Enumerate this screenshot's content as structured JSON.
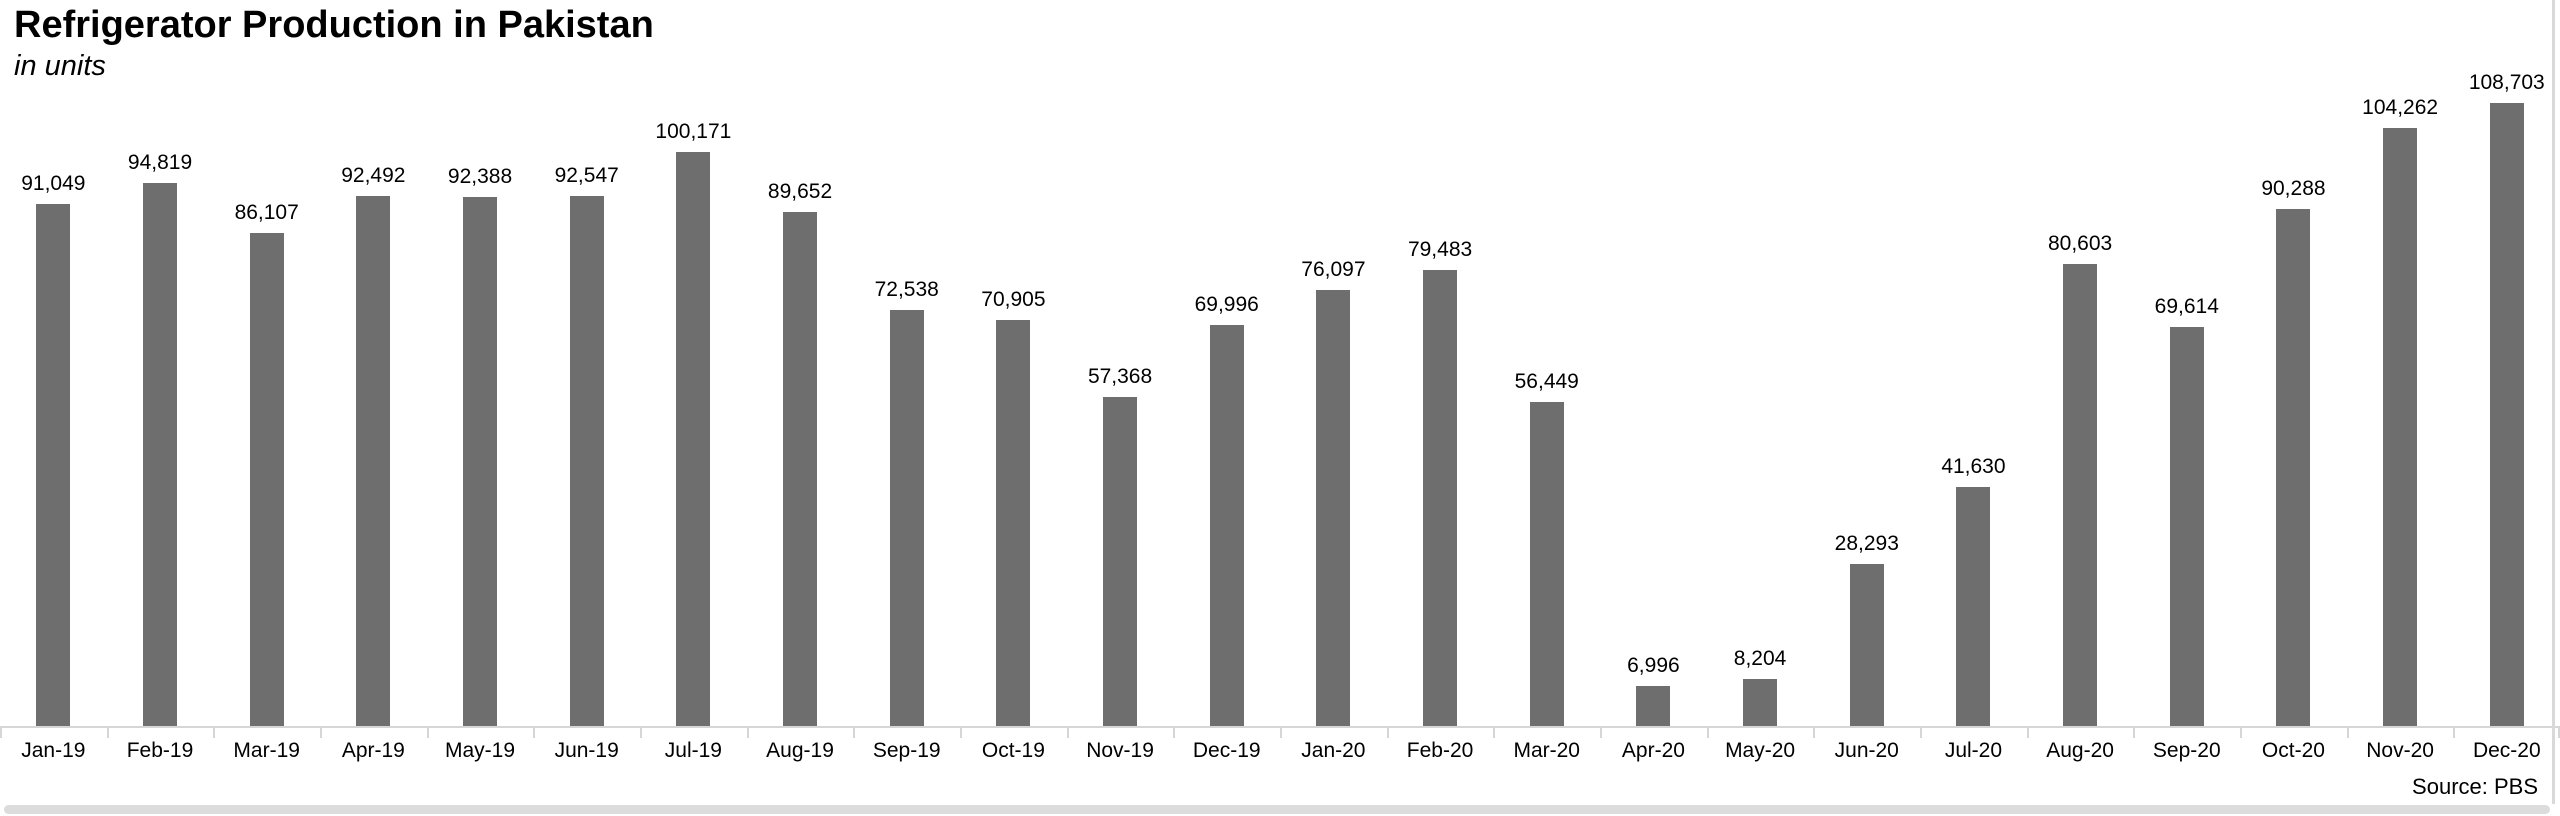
{
  "header": {
    "title": "Refrigerator Production in Pakistan",
    "subtitle": "in units"
  },
  "footer": {
    "source": "Source: PBS"
  },
  "colors": {
    "bar": "#6e6e6e",
    "axis": "#d6d6d6",
    "text": "#000000",
    "scrollbar": "#dcdcdc"
  },
  "chart_data": {
    "type": "bar",
    "title": "Refrigerator Production in Pakistan",
    "subtitle": "in units",
    "source": "Source: PBS",
    "xlabel": "",
    "ylabel": "units",
    "ylim": [
      0,
      110000
    ],
    "grid": false,
    "legend": false,
    "bar_color": "#6e6e6e",
    "categories": [
      "Jan-19",
      "Feb-19",
      "Mar-19",
      "Apr-19",
      "May-19",
      "Jun-19",
      "Jul-19",
      "Aug-19",
      "Sep-19",
      "Oct-19",
      "Nov-19",
      "Dec-19",
      "Jan-20",
      "Feb-20",
      "Mar-20",
      "Apr-20",
      "May-20",
      "Jun-20",
      "Jul-20",
      "Aug-20",
      "Sep-20",
      "Oct-20",
      "Nov-20",
      "Dec-20"
    ],
    "values": [
      91049,
      94819,
      86107,
      92492,
      92388,
      92547,
      100171,
      89652,
      72538,
      70905,
      57368,
      69996,
      76097,
      79483,
      56449,
      6996,
      8204,
      28293,
      41630,
      80603,
      69614,
      90288,
      104262,
      108703
    ],
    "value_labels": [
      "91,049",
      "94,819",
      "86,107",
      "92,492",
      "92,388",
      "92,547",
      "100,171",
      "89,652",
      "72,538",
      "70,905",
      "57,368",
      "69,996",
      "76,097",
      "79,483",
      "56,449",
      "6,996",
      "8,204",
      "28,293",
      "41,630",
      "80,603",
      "69,614",
      "90,288",
      "104,262",
      "108,703"
    ]
  }
}
